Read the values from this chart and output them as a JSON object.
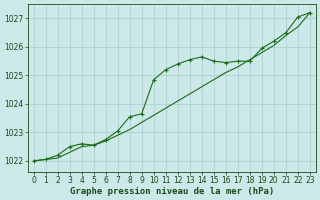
{
  "title": "Graphe pression niveau de la mer (hPa)",
  "bg_color": "#cce8e8",
  "plot_bg_color": "#cce8e8",
  "line_color": "#1a6b1a",
  "marker_color": "#1a6b1a",
  "grid_color": "#a8cece",
  "x_values": [
    0,
    1,
    2,
    3,
    4,
    5,
    6,
    7,
    8,
    9,
    10,
    11,
    12,
    13,
    14,
    15,
    16,
    17,
    18,
    19,
    20,
    21,
    22,
    23
  ],
  "y_smooth": [
    1022.0,
    1022.05,
    1022.1,
    1022.3,
    1022.5,
    1022.55,
    1022.7,
    1022.9,
    1023.1,
    1023.35,
    1023.6,
    1023.85,
    1024.1,
    1024.35,
    1024.6,
    1024.85,
    1025.1,
    1025.3,
    1025.55,
    1025.8,
    1026.05,
    1026.4,
    1026.7,
    1027.2
  ],
  "y_marked": [
    1022.0,
    1022.05,
    1022.2,
    1022.5,
    1022.6,
    1022.55,
    1022.75,
    1023.05,
    1023.55,
    1023.65,
    1024.85,
    1025.2,
    1025.4,
    1025.55,
    1025.65,
    1025.5,
    1025.45,
    1025.5,
    1025.5,
    1025.95,
    1026.2,
    1026.5,
    1027.05,
    1027.2
  ],
  "ylim": [
    1021.6,
    1027.5
  ],
  "yticks": [
    1022,
    1023,
    1024,
    1025,
    1026,
    1027
  ],
  "xlim": [
    -0.5,
    23.5
  ],
  "xticks": [
    0,
    1,
    2,
    3,
    4,
    5,
    6,
    7,
    8,
    9,
    10,
    11,
    12,
    13,
    14,
    15,
    16,
    17,
    18,
    19,
    20,
    21,
    22,
    23
  ],
  "tick_fontsize": 5.5,
  "title_fontsize": 6.5,
  "title_color": "#1a4a1a",
  "tick_color": "#1a4a1a"
}
